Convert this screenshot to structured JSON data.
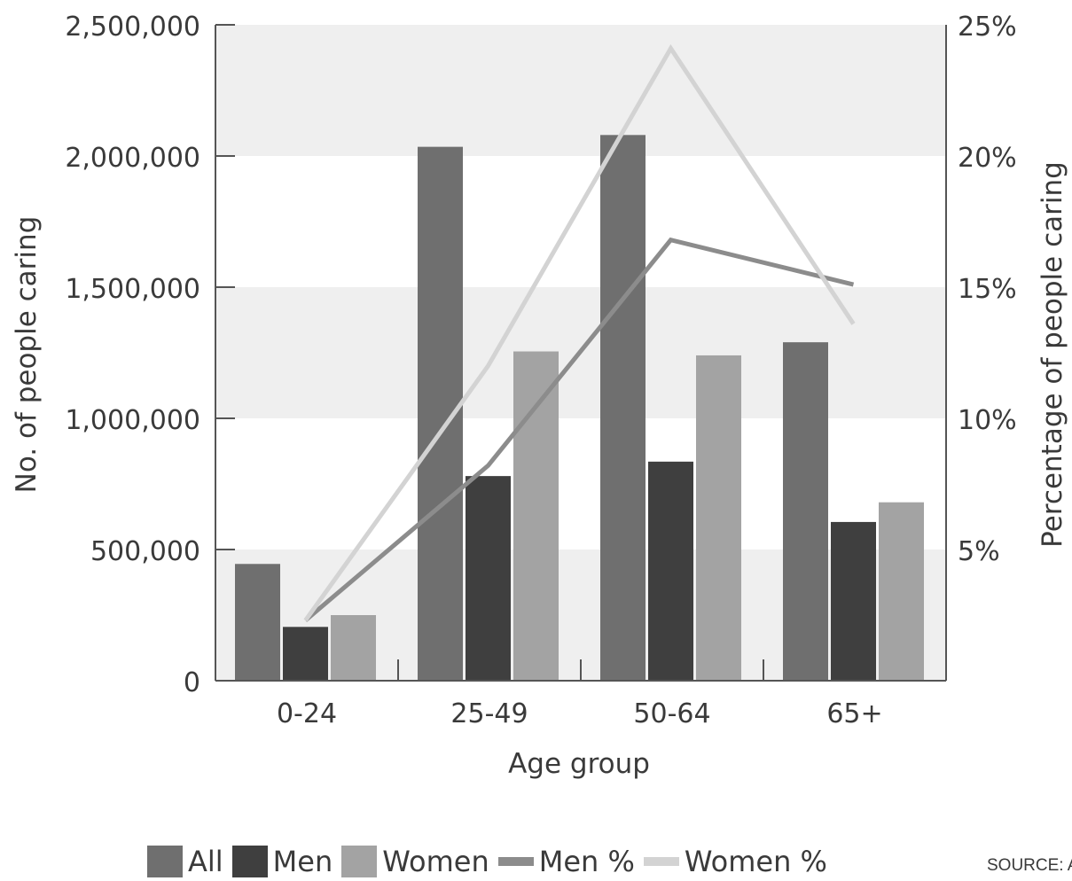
{
  "chart_data": {
    "type": "bar",
    "categories": [
      "0-24",
      "25-49",
      "50-64",
      "65+"
    ],
    "series": [
      {
        "name": "All",
        "kind": "bar",
        "axis": "left",
        "color": "#6f6f6f",
        "values": [
          445000,
          2035000,
          2080000,
          1290000
        ]
      },
      {
        "name": "Men",
        "kind": "bar",
        "axis": "left",
        "color": "#3f3f3f",
        "values": [
          205000,
          780000,
          835000,
          605000
        ]
      },
      {
        "name": "Women",
        "kind": "bar",
        "axis": "left",
        "color": "#a3a3a3",
        "values": [
          250000,
          1255000,
          1240000,
          680000
        ]
      },
      {
        "name": "Men %",
        "kind": "line",
        "axis": "right",
        "color": "#8c8c8c",
        "values": [
          2.3,
          8.2,
          16.8,
          15.1
        ]
      },
      {
        "name": "Women %",
        "kind": "line",
        "axis": "right",
        "color": "#d3d3d3",
        "values": [
          2.3,
          12.0,
          24.1,
          13.6
        ]
      }
    ],
    "xlabel": "Age group",
    "ylabel": "No. of people caring",
    "y2label": "Percentage of people caring",
    "ylim": [
      0,
      2500000
    ],
    "y2lim": [
      0,
      25
    ],
    "yticks": [
      "0",
      "500,000",
      "1,000,000",
      "1,500,000",
      "2,000,000",
      "2,500,000"
    ],
    "y2ticks": [
      "5%",
      "10%",
      "15%",
      "20%",
      "25%"
    ],
    "grid": "alternating horizontal bands",
    "legend_position": "bottom"
  },
  "legend": {
    "all": "All",
    "men": "Men",
    "women": "Women",
    "men_pct": "Men %",
    "women_pct": "Women %"
  },
  "source": "SOURCE: A"
}
